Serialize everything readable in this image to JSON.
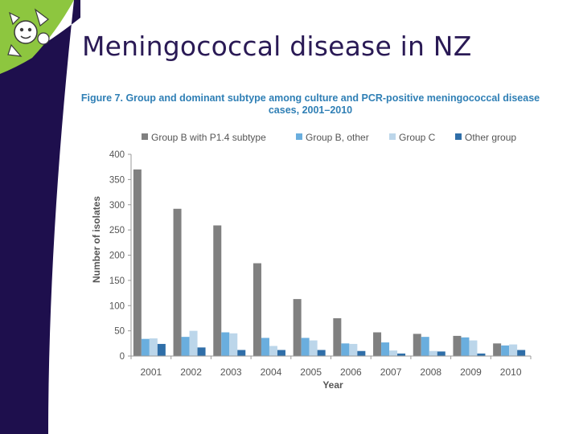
{
  "slide": {
    "title": "Meningococcal disease in NZ"
  },
  "colors": {
    "sidebar": "#1e0f4d",
    "accent_green": "#8dc63f",
    "title_text": "#2a1a55",
    "figure_title": "#2f7fb5"
  },
  "chart_data": {
    "type": "bar",
    "title": "Figure 7. Group and dominant subtype among culture and PCR-positive meningococcal disease cases, 2001–2010",
    "title_lines": [
      "Figure 7. Group and dominant subtype among culture and PCR-positive meningococcal disease",
      "cases, 2001–2010"
    ],
    "xlabel": "Year",
    "ylabel": "Number of isolates",
    "ylim": [
      0,
      400
    ],
    "yticks": [
      0,
      50,
      100,
      150,
      200,
      250,
      300,
      350,
      400
    ],
    "grid": false,
    "legend_position": "top",
    "categories": [
      "2001",
      "2002",
      "2003",
      "2004",
      "2005",
      "2006",
      "2007",
      "2008",
      "2009",
      "2010"
    ],
    "series": [
      {
        "name": "Group B with P1.4 subtype",
        "color": "#808080",
        "values": [
          370,
          292,
          259,
          184,
          113,
          75,
          47,
          44,
          40,
          25
        ]
      },
      {
        "name": "Group B, other",
        "color": "#6aaede",
        "values": [
          34,
          38,
          47,
          36,
          36,
          25,
          27,
          38,
          37,
          21
        ]
      },
      {
        "name": "Group C",
        "color": "#bcd6ea",
        "values": [
          35,
          50,
          45,
          20,
          31,
          24,
          11,
          10,
          31,
          23
        ]
      },
      {
        "name": "Other group",
        "color": "#2f6ea8",
        "values": [
          24,
          17,
          12,
          12,
          12,
          10,
          5,
          9,
          5,
          12
        ]
      }
    ]
  }
}
